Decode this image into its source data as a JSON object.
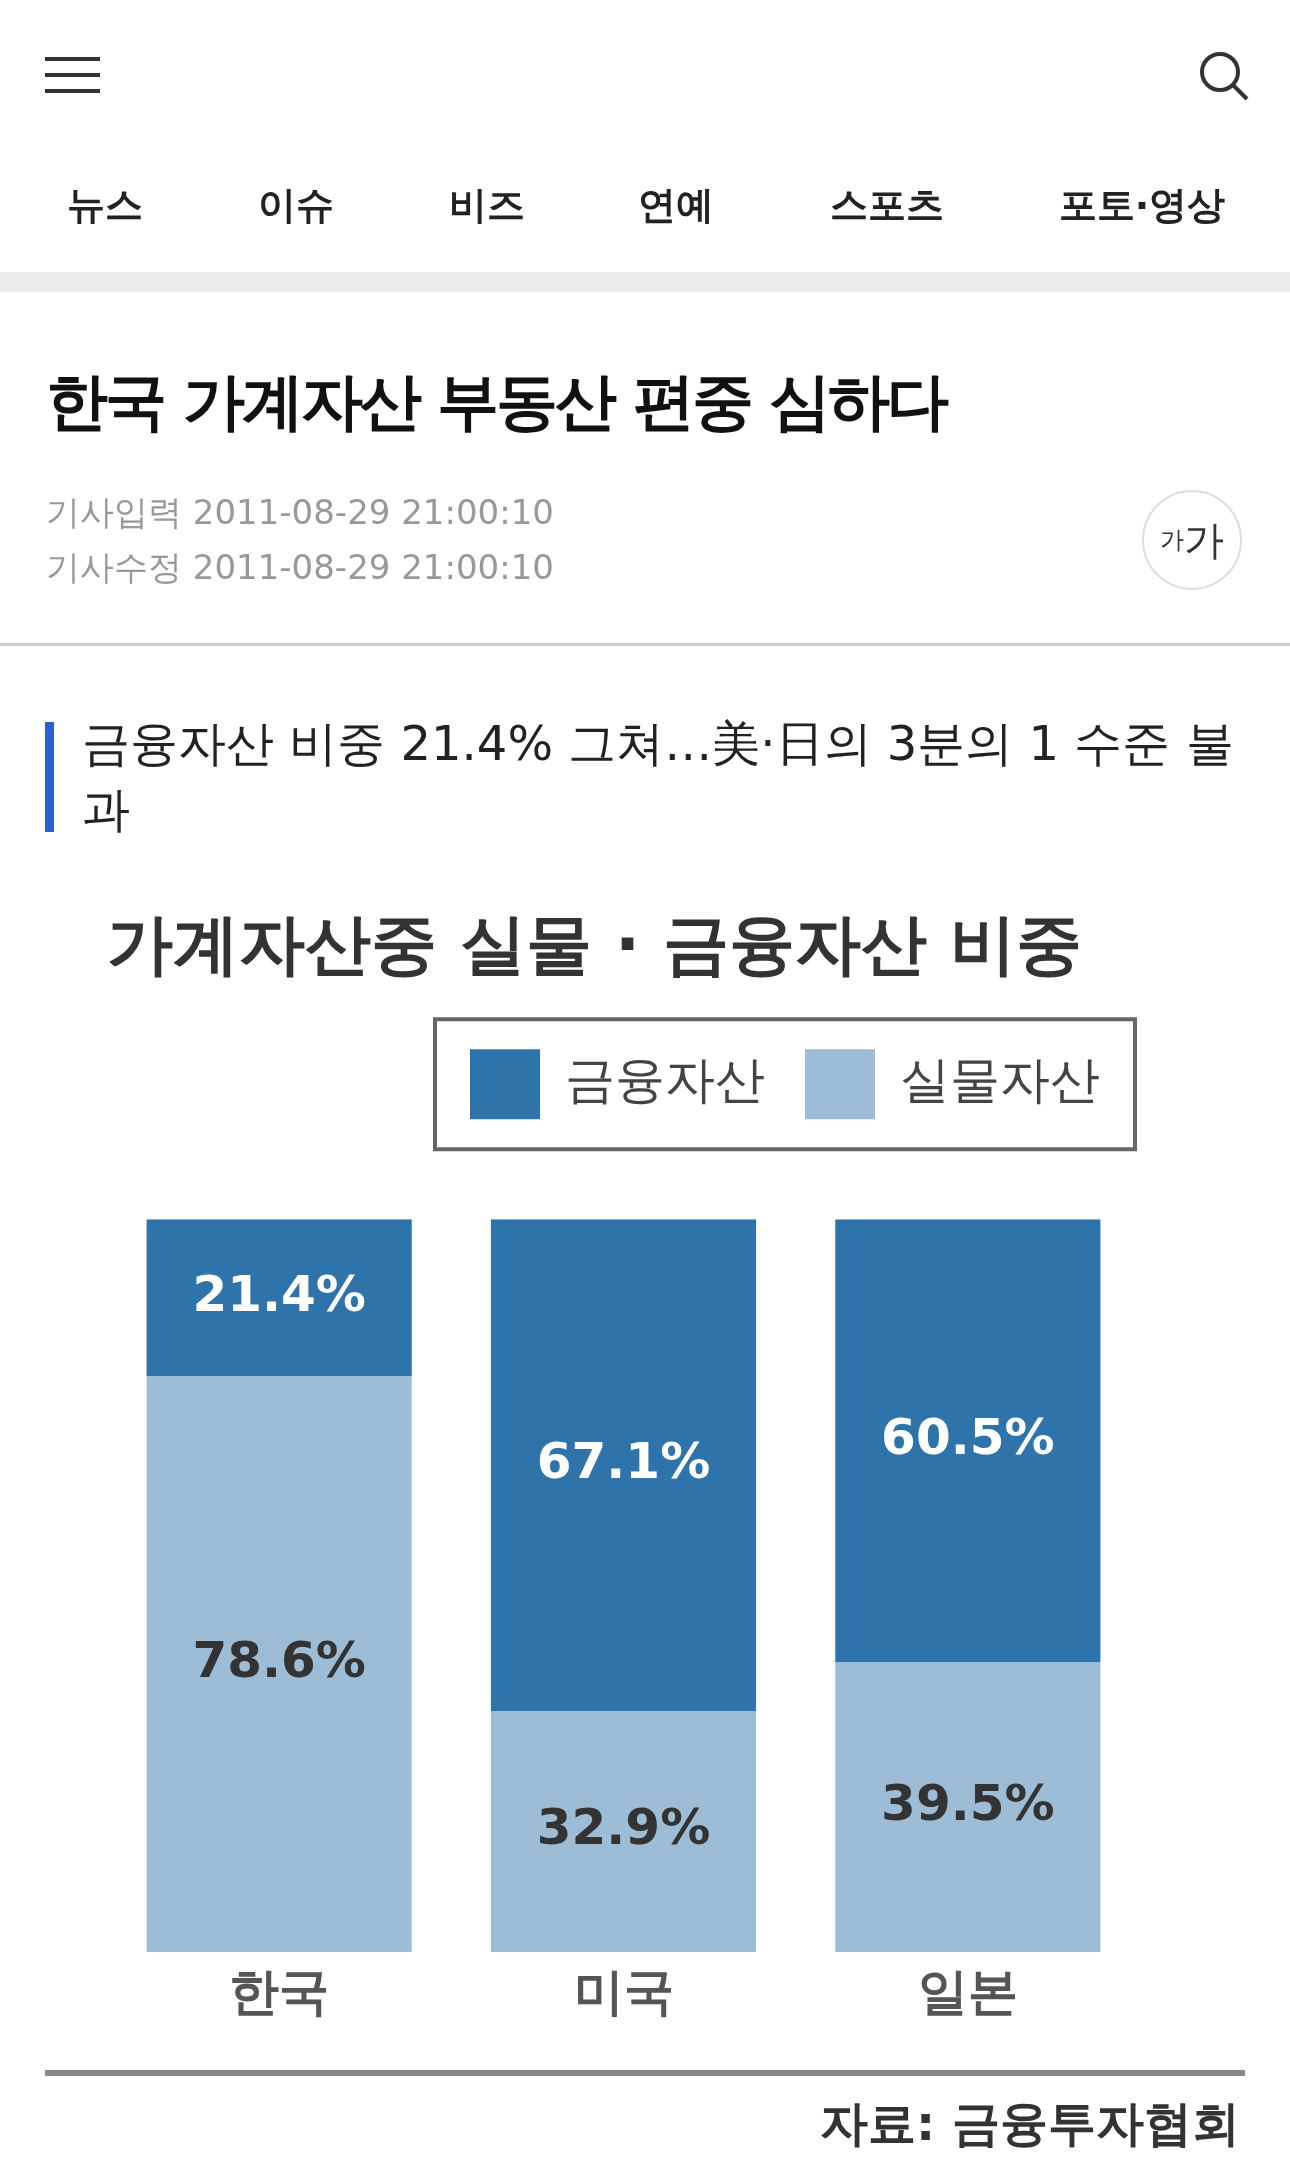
{
  "chart_data": {
    "type": "bar",
    "stacked": true,
    "title": "가계자산중 실물 · 금융자산 비중",
    "categories": [
      "한국",
      "미국",
      "일본"
    ],
    "series": [
      {
        "name": "실물자산",
        "color": "#9dbdd6",
        "values": [
          78.6,
          32.9,
          39.5
        ],
        "value_labels": [
          "78.6%",
          "32.9%",
          "39.5%"
        ]
      },
      {
        "name": "금융자산",
        "color": "#2e74ab",
        "values": [
          21.4,
          67.1,
          60.5
        ],
        "value_labels": [
          "21.4%",
          "67.1%",
          "60.5%"
        ]
      }
    ],
    "tick_labels": "x",
    "grid": false,
    "legend": "top right",
    "annotations": [
      "뉴스",
      "이슈",
      "비즈",
      "연예",
      "스포츠",
      "포토·영상",
      "한국 가계자산 부동산 편중 심하다",
      "기사입력 2011-08-29 21:00:10",
      "기사수정 2011-08-29 21:00:10",
      "가가",
      "금융자산 비중 21.4% 그쳐…美·日의 3분의 1 수준 불과",
      "자료: 금융투자협회"
    ]
  }
}
